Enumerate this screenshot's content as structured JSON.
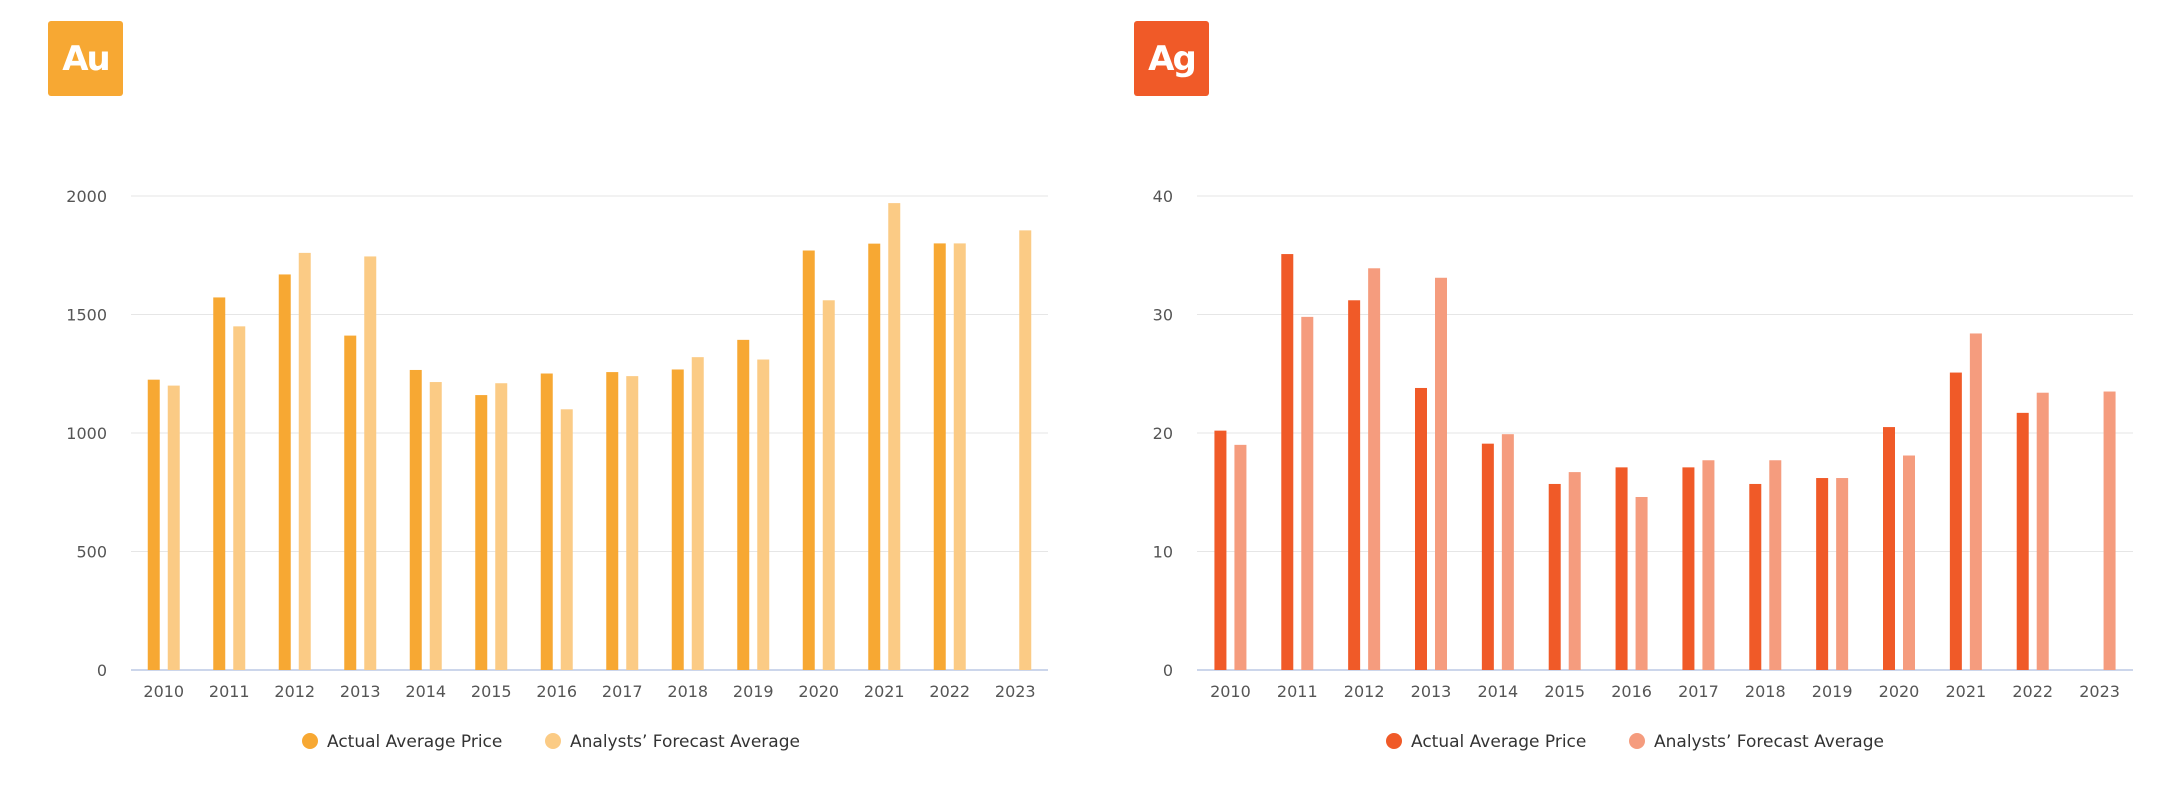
{
  "chart_data": [
    {
      "type": "bar",
      "badge": "Au",
      "badge_color": "#F7A833",
      "categories": [
        "2010",
        "2011",
        "2012",
        "2013",
        "2014",
        "2015",
        "2016",
        "2017",
        "2018",
        "2019",
        "2020",
        "2021",
        "2022",
        "2023"
      ],
      "ylim": [
        0,
        2000
      ],
      "yticks": [
        0,
        500,
        1000,
        1500,
        2000
      ],
      "grid": true,
      "legend_placement": "bottom-center",
      "series": [
        {
          "name": "Actual Average Price",
          "color": "#F7A833",
          "values": [
            1225,
            1572,
            1669,
            1411,
            1266,
            1160,
            1251,
            1257,
            1268,
            1393,
            1770,
            1799,
            1800,
            null
          ]
        },
        {
          "name": "Analysts’ Forecast Average",
          "color": "#FBCB85",
          "values": [
            1200,
            1450,
            1760,
            1745,
            1215,
            1210,
            1100,
            1240,
            1320,
            1310,
            1560,
            1970,
            1800,
            1855
          ]
        }
      ]
    },
    {
      "type": "bar",
      "badge": "Ag",
      "badge_color": "#F05A28",
      "categories": [
        "2010",
        "2011",
        "2012",
        "2013",
        "2014",
        "2015",
        "2016",
        "2017",
        "2018",
        "2019",
        "2020",
        "2021",
        "2022",
        "2023"
      ],
      "ylim": [
        0,
        40
      ],
      "yticks": [
        0,
        10,
        20,
        30,
        40
      ],
      "grid": true,
      "legend_placement": "bottom-center",
      "series": [
        {
          "name": "Actual Average Price",
          "color": "#F05A28",
          "values": [
            20.2,
            35.1,
            31.2,
            23.8,
            19.1,
            15.7,
            17.1,
            17.1,
            15.7,
            16.2,
            20.5,
            25.1,
            21.7,
            null
          ]
        },
        {
          "name": "Analysts’ Forecast Average",
          "color": "#F59C7E",
          "values": [
            19.0,
            29.8,
            33.9,
            33.1,
            19.9,
            16.7,
            14.6,
            17.7,
            17.7,
            16.2,
            18.1,
            28.4,
            23.4,
            23.5
          ]
        }
      ]
    }
  ]
}
